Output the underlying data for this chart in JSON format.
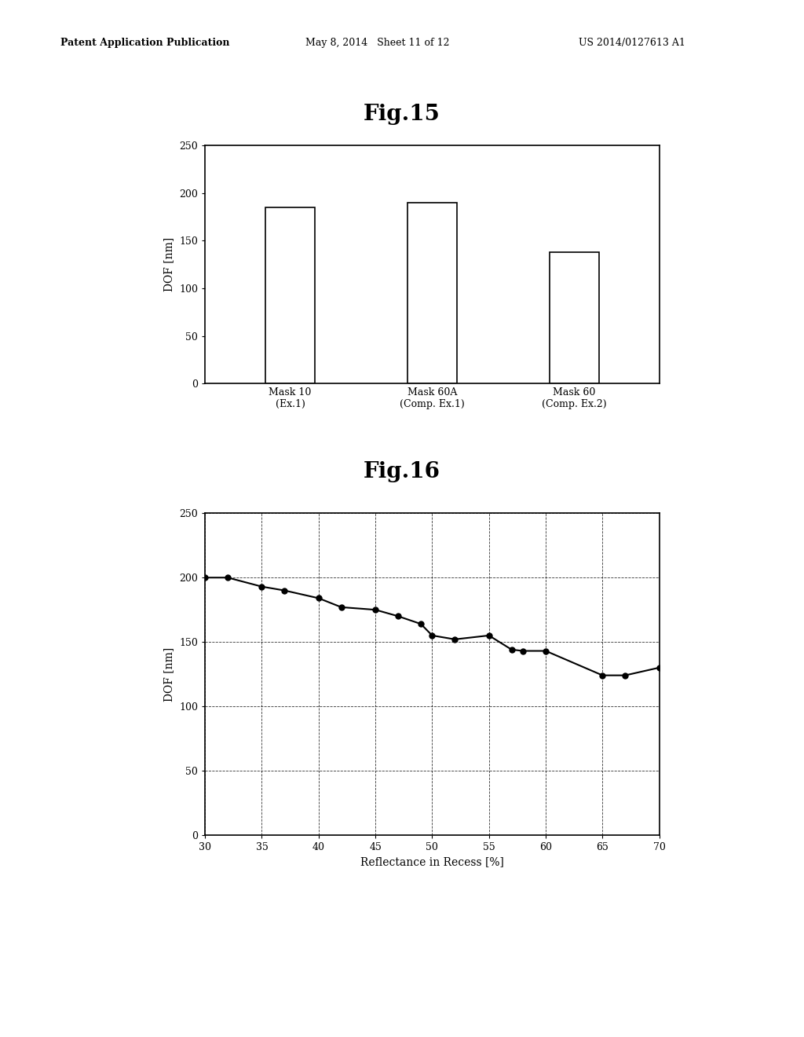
{
  "fig15_title": "Fig.15",
  "fig16_title": "Fig.16",
  "bar_categories": [
    "Mask 10\n(Ex.1)",
    "Mask 60A\n(Comp. Ex.1)",
    "Mask 60\n(Comp. Ex.2)"
  ],
  "bar_values": [
    185,
    190,
    138
  ],
  "bar_color": "#ffffff",
  "bar_edgecolor": "#000000",
  "bar_ylim": [
    0,
    250
  ],
  "bar_yticks": [
    0,
    50,
    100,
    150,
    200,
    250
  ],
  "bar_ylabel": "DOF [nm]",
  "line_x": [
    30,
    32,
    35,
    37,
    40,
    42,
    45,
    47,
    49,
    50,
    52,
    55,
    57,
    58,
    60,
    65,
    67,
    70
  ],
  "line_y": [
    200,
    200,
    193,
    190,
    184,
    177,
    175,
    170,
    164,
    155,
    152,
    155,
    144,
    143,
    143,
    124,
    124,
    130
  ],
  "line_color": "#000000",
  "line_xlim": [
    30,
    70
  ],
  "line_ylim": [
    0,
    250
  ],
  "line_yticks": [
    0,
    50,
    100,
    150,
    200,
    250
  ],
  "line_xticks": [
    30,
    35,
    40,
    45,
    50,
    55,
    60,
    65,
    70
  ],
  "line_ylabel": "DOF [nm]",
  "line_xlabel": "Reflectance in Recess [%]",
  "header_left": "Patent Application Publication",
  "header_mid": "May 8, 2014   Sheet 11 of 12",
  "header_right": "US 2014/0127613 A1",
  "background_color": "#ffffff",
  "text_color": "#000000"
}
